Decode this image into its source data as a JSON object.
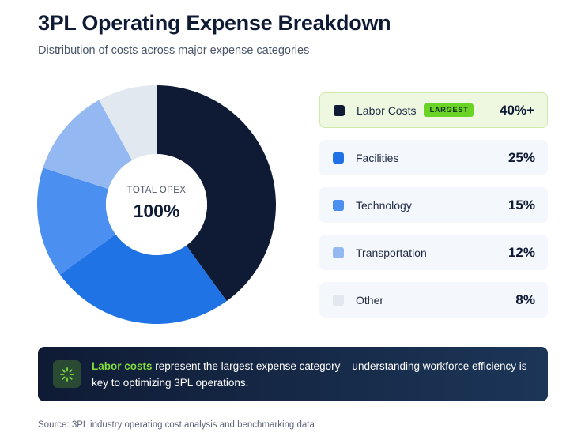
{
  "title": "3PL Operating Expense Breakdown",
  "subtitle": "Distribution of costs across major expense categories",
  "donut": {
    "center_label": "TOTAL OPEX",
    "center_value": "100%"
  },
  "chart_data": {
    "type": "pie",
    "variant": "donut",
    "title": "3PL Operating Expense Breakdown",
    "subtitle": "Distribution of costs across major expense categories",
    "categories": [
      "Labor Costs",
      "Facilities",
      "Technology",
      "Transportation",
      "Other"
    ],
    "values": [
      40,
      25,
      15,
      12,
      8
    ],
    "value_labels": [
      "40%+",
      "25%",
      "15%",
      "12%",
      "8%"
    ],
    "colors": [
      "#0f1b35",
      "#1f73e5",
      "#4b8ff0",
      "#94b8f2",
      "#e2e8f0"
    ],
    "legend_position": "right"
  },
  "legend": [
    {
      "label": "Labor Costs",
      "value": "40%+",
      "badge": "LARGEST",
      "color": "#0f1b35"
    },
    {
      "label": "Facilities",
      "value": "25%",
      "color": "#1f73e5"
    },
    {
      "label": "Technology",
      "value": "15%",
      "color": "#4b8ff0"
    },
    {
      "label": "Transportation",
      "value": "12%",
      "color": "#94b8f2"
    },
    {
      "label": "Other",
      "value": "8%",
      "color": "#e2e8f0"
    }
  ],
  "callout": {
    "highlight": "Labor costs",
    "text": " represent the largest expense category – understanding workforce efficiency is key to optimizing 3PL operations.",
    "icon": "sparkle-icon",
    "icon_color": "#7fdc3b"
  },
  "source": "Source: 3PL industry operating cost analysis and benchmarking data"
}
